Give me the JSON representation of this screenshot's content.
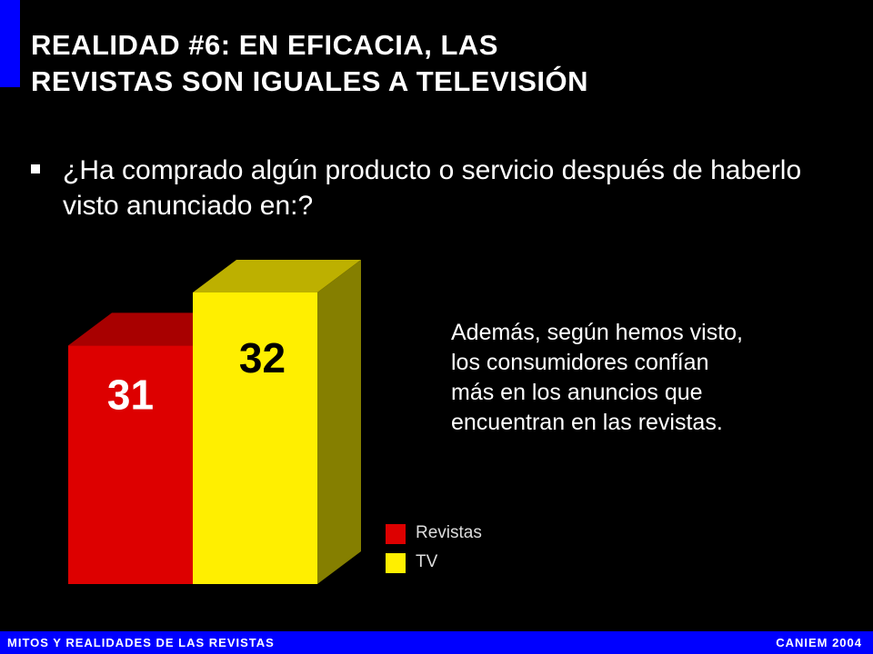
{
  "title": {
    "line1": "REALIDAD #6:  EN EFICACIA, LAS",
    "line2": "REVISTAS SON IGUALES A TELEVISIÓN"
  },
  "question": "¿Ha comprado algún producto o servicio después de haberlo visto anunciado en:?",
  "side_note": {
    "lines": [
      "Además, según hemos visto,",
      "los consumidores confían",
      "más en los anuncios que",
      "encuentran en las revistas."
    ]
  },
  "colors": {
    "accent": "#0000ff",
    "revistas_front": "#dd0000",
    "revistas_top": "#a80000",
    "tv_front": "#ffef00",
    "tv_top": "#bdb000",
    "tv_side": "#857f00"
  },
  "chart_data": {
    "type": "bar",
    "categories": [
      "Revistas",
      "TV"
    ],
    "values": [
      31,
      32
    ],
    "data_labels": [
      "31",
      "32"
    ],
    "legend": [
      "Revistas",
      "TV"
    ],
    "legend_position": "bottom-right",
    "grid": false,
    "ylim": [
      0,
      32
    ]
  },
  "footer": {
    "left": "MITOS Y REALIDADES DE LAS REVISTAS",
    "right": "CANIEM 2004"
  }
}
